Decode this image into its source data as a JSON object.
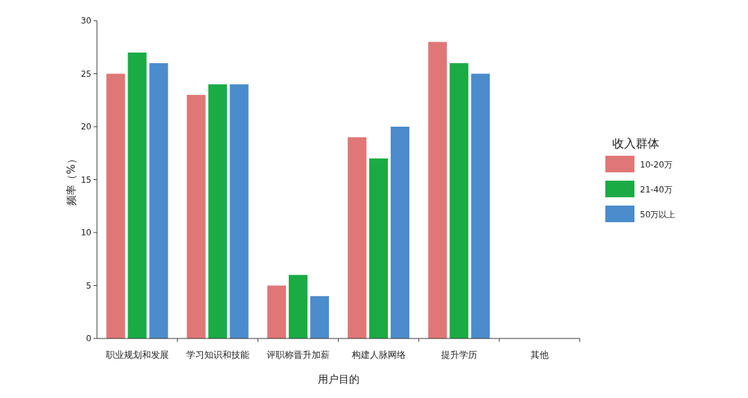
{
  "chart_data": {
    "type": "bar",
    "xlabel": "用户目的",
    "ylabel": "频率（%）",
    "legend_title": "收入群体",
    "legend": "right",
    "grid": false,
    "categories": [
      "职业规划和发展",
      "学习知识和技能",
      "评职称晋升加薪",
      "构建人脉网络",
      "提升学历",
      "其他"
    ],
    "series": [
      {
        "name": "10-20万",
        "color": "#e07777",
        "values": [
          25,
          23,
          5,
          19,
          28,
          0
        ]
      },
      {
        "name": "21-40万",
        "color": "#1aab45",
        "values": [
          27,
          24,
          6,
          17,
          26,
          0
        ]
      },
      {
        "name": "50万以上",
        "color": "#4a8ccc",
        "values": [
          26,
          24,
          4,
          20,
          25,
          0
        ]
      }
    ],
    "ylim": [
      0,
      30
    ],
    "yticks": [
      0,
      5,
      10,
      15,
      20,
      25,
      30
    ]
  }
}
